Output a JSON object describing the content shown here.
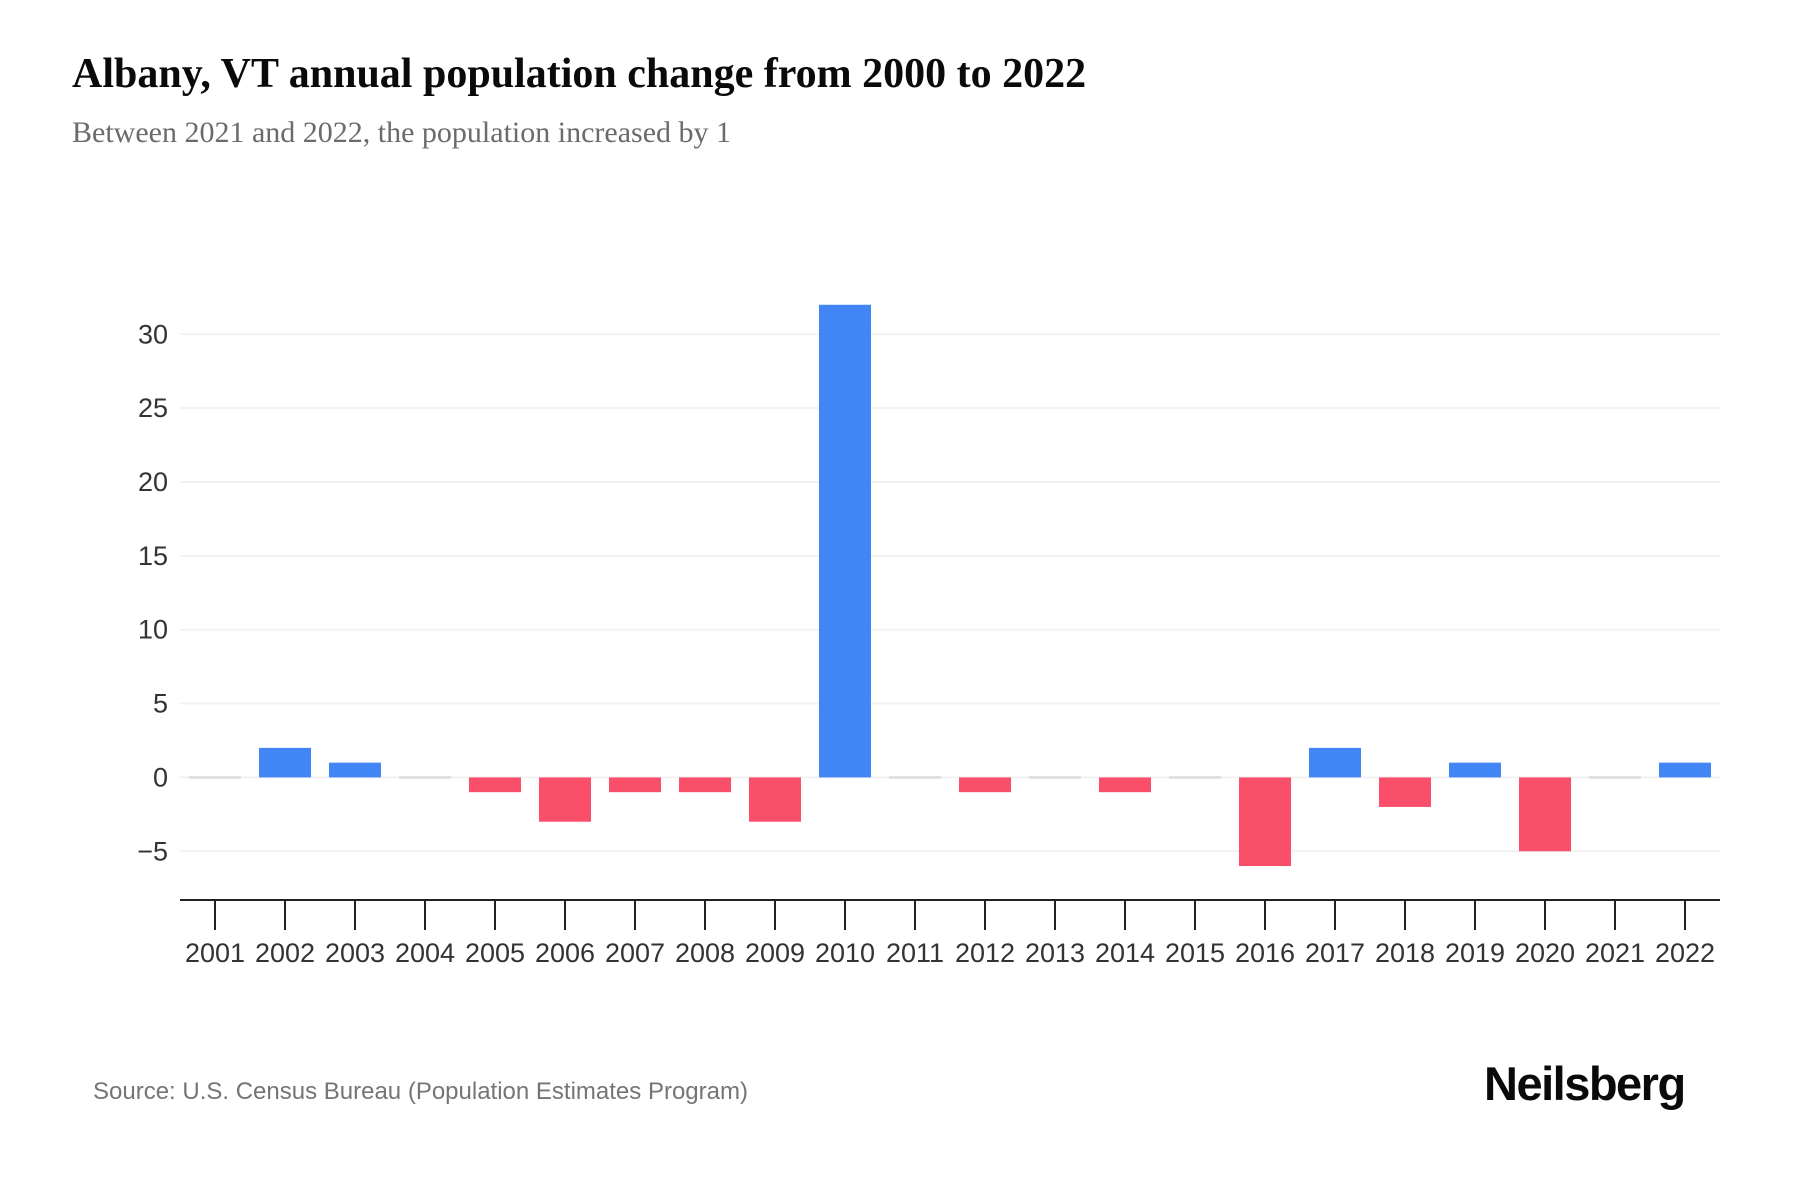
{
  "header": {
    "title": "Albany, VT annual population change from 2000 to 2022",
    "subtitle": "Between 2021 and 2022, the population increased by 1"
  },
  "chart_data": {
    "type": "bar",
    "title": "Albany, VT annual population change from 2000 to 2022",
    "subtitle": "Between 2021 and 2022, the population increased by 1",
    "categories": [
      "2001",
      "2002",
      "2003",
      "2004",
      "2005",
      "2006",
      "2007",
      "2008",
      "2009",
      "2010",
      "2011",
      "2012",
      "2013",
      "2014",
      "2015",
      "2016",
      "2017",
      "2018",
      "2019",
      "2020",
      "2021",
      "2022"
    ],
    "values": [
      0,
      2,
      1,
      0,
      -1,
      -3,
      -1,
      -1,
      -3,
      32,
      0,
      -1,
      0,
      -1,
      0,
      -6,
      2,
      -2,
      1,
      -5,
      0,
      1
    ],
    "xlabel": "",
    "ylabel": "",
    "ylim": [
      -8.3,
      33
    ],
    "yticks": [
      -5,
      0,
      5,
      10,
      15,
      20,
      25,
      30
    ],
    "grid": true,
    "legend": false,
    "colors": {
      "positive": "#4285F4",
      "negative": "#F94F6B",
      "zero_bar": "#E0E0E0",
      "gridline": "#F2F2F2",
      "axis_line": "#222222",
      "tick_label": "#333333"
    }
  },
  "footer": {
    "source": "Source: U.S. Census Bureau (Population Estimates Program)",
    "logo": "Neilsberg"
  }
}
